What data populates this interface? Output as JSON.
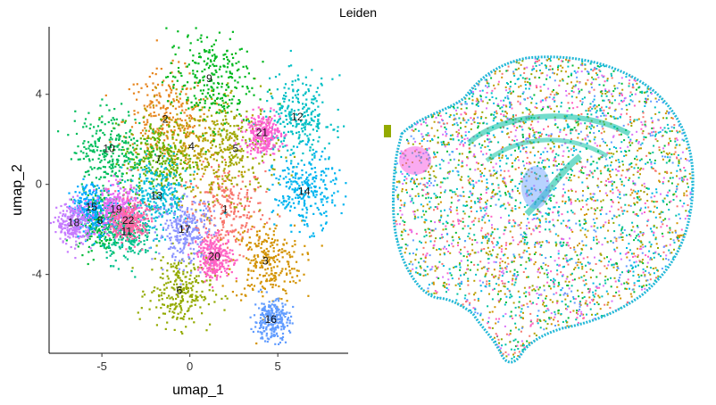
{
  "chart_data": [
    {
      "type": "scatter",
      "title": "Leiden",
      "xlabel": "umap_1",
      "ylabel": "umap_2",
      "xlim": [
        -8,
        9
      ],
      "ylim": [
        -7.5,
        7
      ],
      "x_ticks": [
        -5,
        0,
        5
      ],
      "y_ticks": [
        -4,
        0,
        4
      ],
      "x_tick_labels": [
        "-5",
        "0",
        "5"
      ],
      "y_tick_labels": [
        "-4",
        "0",
        "4"
      ],
      "grid": false,
      "legend": "none",
      "clusters": [
        {
          "label": "1",
          "x": 2.0,
          "y": -1.1,
          "color": "#F8766D"
        },
        {
          "label": "2",
          "x": -1.4,
          "y": 2.9,
          "color": "#E7851E"
        },
        {
          "label": "3",
          "x": 4.3,
          "y": -3.4,
          "color": "#D39200"
        },
        {
          "label": "4",
          "x": 0.1,
          "y": 1.7,
          "color": "#BB9D00"
        },
        {
          "label": "5",
          "x": 2.6,
          "y": 1.6,
          "color": "#9DA700"
        },
        {
          "label": "6",
          "x": -0.6,
          "y": -4.7,
          "color": "#93AA00"
        },
        {
          "label": "7",
          "x": -1.8,
          "y": 1.1,
          "color": "#5EB300"
        },
        {
          "label": "8",
          "x": -5.1,
          "y": -1.6,
          "color": "#00BA38"
        },
        {
          "label": "9",
          "x": 1.1,
          "y": 4.7,
          "color": "#00B81F"
        },
        {
          "label": "10",
          "x": -4.6,
          "y": 1.6,
          "color": "#00BD5C"
        },
        {
          "label": "11",
          "x": -3.6,
          "y": -2.1,
          "color": "#00C08B"
        },
        {
          "label": "12",
          "x": 6.1,
          "y": 3.0,
          "color": "#00BFC4"
        },
        {
          "label": "13",
          "x": -1.9,
          "y": -0.5,
          "color": "#00BCD8"
        },
        {
          "label": "14",
          "x": 6.5,
          "y": -0.3,
          "color": "#00B4EF"
        },
        {
          "label": "15",
          "x": -5.6,
          "y": -1.0,
          "color": "#00A9FF"
        },
        {
          "label": "16",
          "x": 4.6,
          "y": -6.0,
          "color": "#619CFF"
        },
        {
          "label": "17",
          "x": -0.3,
          "y": -2.0,
          "color": "#8B93FF"
        },
        {
          "label": "18",
          "x": -6.6,
          "y": -1.7,
          "color": "#C77CFF"
        },
        {
          "label": "19",
          "x": -4.2,
          "y": -1.1,
          "color": "#E76BF3"
        },
        {
          "label": "20",
          "x": 1.4,
          "y": -3.2,
          "color": "#FF61C3"
        },
        {
          "label": "21",
          "x": 4.1,
          "y": 2.3,
          "color": "#FD61D1"
        },
        {
          "label": "22",
          "x": -3.5,
          "y": -1.6,
          "color": "#FF67A4"
        }
      ]
    },
    {
      "type": "scatter",
      "title": "",
      "legend": "none",
      "grid": false,
      "axes": "hidden",
      "colors": [
        "#F8766D",
        "#D39200",
        "#93AA00",
        "#00BA38",
        "#00C19F",
        "#00B9E3",
        "#619CFF",
        "#DB72FB",
        "#FF61C3",
        "#BB9D00",
        "#00BFC4"
      ]
    }
  ]
}
